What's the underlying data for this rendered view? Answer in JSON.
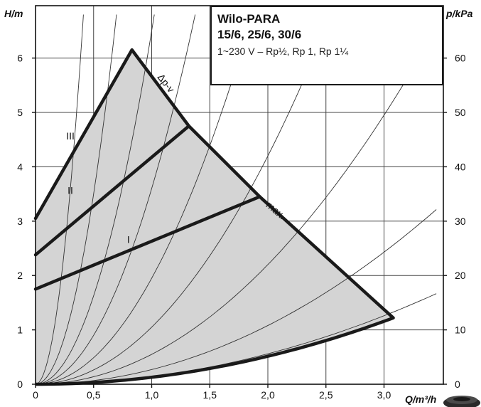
{
  "chart_data": {
    "type": "line",
    "title": "Wilo-PARA",
    "subtitle": "15/6, 25/6, 30/6",
    "spec": "1~230 V – Rp½, Rp 1, Rp 1¼",
    "xlabel": "Q/m³/h",
    "ylabel": "H/m",
    "y2label": "p/kPa",
    "xlim": [
      0,
      3.45
    ],
    "ylim": [
      0,
      6.8
    ],
    "y2lim": [
      0,
      68
    ],
    "xticks": [
      "0",
      "0,5",
      "1,0",
      "1,5",
      "2,0",
      "2,5",
      "3,0"
    ],
    "xtick_values": [
      0,
      0.5,
      1.0,
      1.5,
      2.0,
      2.5,
      3.0
    ],
    "yticks": [
      0,
      1,
      2,
      3,
      4,
      5,
      6
    ],
    "y2ticks": [
      0,
      10,
      20,
      30,
      40,
      50,
      60
    ],
    "grid": true,
    "fill_color": "#d4d4d4",
    "line_color": "#1a1a1a",
    "series": [
      {
        "name": "III",
        "x": [
          0,
          0.83
        ],
        "y": [
          3.05,
          6.15
        ]
      },
      {
        "name": "II",
        "x": [
          0,
          1.32
        ],
        "y": [
          2.38,
          4.75
        ]
      },
      {
        "name": "I",
        "x": [
          0,
          1.93
        ],
        "y": [
          1.75,
          3.45
        ]
      },
      {
        "name": "Δp-v",
        "x": [
          0.83,
          1.32,
          1.93
        ],
        "y": [
          6.15,
          4.75,
          3.45
        ]
      },
      {
        "name": "max.",
        "x": [
          1.93,
          3.08
        ],
        "y": [
          3.45,
          1.22
        ]
      }
    ],
    "system_curve": {
      "x": [
        0,
        3.08
      ],
      "y": [
        0,
        1.22
      ]
    },
    "annotations": [
      {
        "text": "III",
        "x": 0.3,
        "y": 4.5
      },
      {
        "text": "II",
        "x": 0.3,
        "y": 3.5
      },
      {
        "text": "I",
        "x": 0.8,
        "y": 2.6
      },
      {
        "text": "Δp-v",
        "x": 1.1,
        "y": 5.5
      },
      {
        "text": "max.",
        "x": 2.05,
        "y": 3.15
      }
    ]
  }
}
